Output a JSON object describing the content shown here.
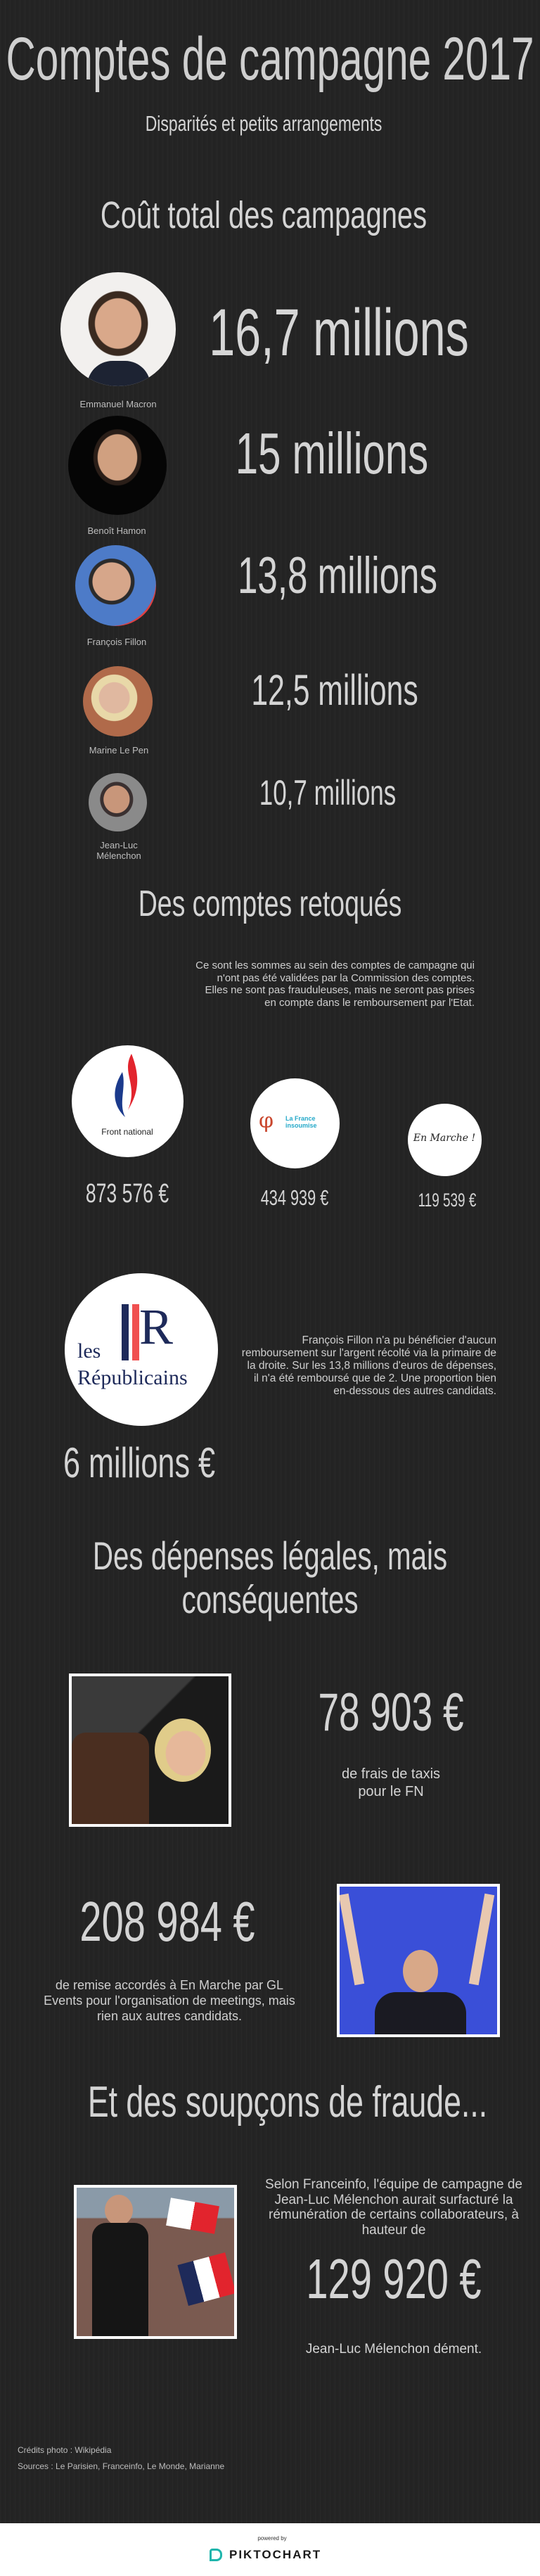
{
  "header": {
    "title": "Comptes de campagne 2017",
    "subtitle": "Disparités et  petits arrangements"
  },
  "costs": {
    "heading": "Coût total des campagnes",
    "candidates": [
      {
        "name": "Emmanuel Macron",
        "amount": "16,7 millions"
      },
      {
        "name": "Benoît Hamon",
        "amount": "15 millions"
      },
      {
        "name": "François Fillon",
        "amount": "13,8 millions"
      },
      {
        "name": "Marine Le Pen",
        "amount": "12,5 millions"
      },
      {
        "name": "Jean-Luc Mélenchon",
        "amount": "10,7 millions"
      }
    ]
  },
  "rejected": {
    "heading": "Des comptes retoqués",
    "intro": "Ce sont les sommes au sein des comptes de campagne qui n'ont pas été validées par la Commission des comptes. Elles ne sont pas frauduleuses, mais ne seront pas prises en compte dans le remboursement par l'Etat.",
    "parties": [
      {
        "logo_text": "Front national",
        "amount": "873 576 €"
      },
      {
        "logo_text": "La France insoumise",
        "amount": "434 939 €"
      },
      {
        "logo_text": "En Marche !",
        "amount": "119 539 €"
      }
    ],
    "lr": {
      "logo_text_1": "les",
      "logo_text_2": "Républicains",
      "text": "François Fillon n'a pu bénéficier d'aucun remboursement sur l'argent récolté via la primaire de la droite. Sur les 13,8 millions d'euros de dépenses, il n'a été remboursé que de 2. Une proportion bien en-dessous des autres candidats.",
      "amount": "6 millions €"
    }
  },
  "legal": {
    "heading_line1": "Des dépenses légales, mais",
    "heading_line2": "conséquentes",
    "fn": {
      "amount": "78 903 €",
      "line1": "de frais de taxis",
      "line2": "pour le FN"
    },
    "em": {
      "amount": "208 984 €",
      "text": "de remise accordés à En Marche par GL Events pour l'organisation de meetings, mais rien aux autres candidats."
    }
  },
  "fraud": {
    "heading": "Et des soupçons de fraude...",
    "text": "Selon Franceinfo, l'équipe de campagne de Jean-Luc Mélenchon aurait surfacturé la rémunération de certains collaborateurs, à hauteur de",
    "amount": "129 920 €",
    "denial": "Jean-Luc Mélenchon dément."
  },
  "credits": {
    "photos": "Crédits photo : Wikipédia",
    "sources": "Sources : Le Parisien, Franceinfo, Le Monde, Marianne"
  },
  "footer": {
    "powered_by": "powered by",
    "brand": "PIKTOCHART"
  },
  "colors": {
    "background": "#242424",
    "text": "#d4d4d4",
    "fn_blue": "#1b3a8c",
    "fn_red": "#e2242d",
    "lfi_red": "#c9452c",
    "lfi_blue": "#25a9c9",
    "lr_navy": "#1e2a5a",
    "lr_red": "#f05050",
    "piktochart_teal": "#1fb5ac"
  }
}
